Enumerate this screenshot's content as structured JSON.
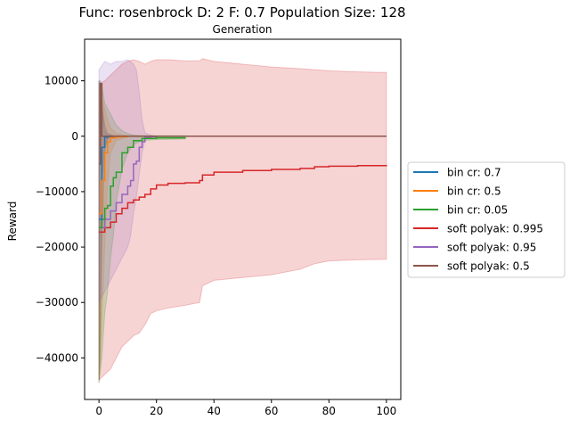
{
  "chart_data": {
    "type": "line",
    "title": "Func: rosenbrock D: 2 F: 0.7 Population Size: 128",
    "xlabel_top": "Generation",
    "ylabel": "Reward",
    "xlim": [
      -5,
      105
    ],
    "ylim": [
      -47500,
      17500
    ],
    "xticks": [
      0,
      20,
      40,
      60,
      80,
      100
    ],
    "yticks": [
      10000,
      0,
      -10000,
      -20000,
      -30000,
      -40000
    ],
    "ytick_labels": [
      "10000",
      "0",
      "−10000",
      "−20000",
      "−30000",
      "−40000"
    ],
    "grid": false,
    "legend_position": "center-right-outside",
    "series": [
      {
        "name": "bin cr: 0.7",
        "color": "#1f77b4",
        "x": [
          0,
          1,
          2,
          3,
          5,
          10,
          30,
          60,
          100
        ],
        "mean": [
          -15000,
          -2000,
          -200,
          -50,
          0,
          0,
          0,
          0,
          0
        ],
        "lower": [
          -44000,
          -20000,
          -3000,
          -500,
          -100,
          0,
          0,
          0,
          0
        ],
        "upper": [
          10000,
          5000,
          1000,
          300,
          100,
          0,
          0,
          0,
          0
        ]
      },
      {
        "name": "bin cr: 0.5",
        "color": "#ff7f0e",
        "x": [
          0,
          1,
          2,
          3,
          4,
          6,
          10,
          30,
          60,
          100
        ],
        "mean": [
          -14000,
          -8000,
          -3000,
          -1000,
          -300,
          -100,
          0,
          0,
          0,
          0
        ],
        "lower": [
          -44000,
          -34000,
          -20000,
          -9000,
          -3000,
          -800,
          -100,
          0,
          0,
          0
        ],
        "upper": [
          9000,
          7000,
          5000,
          3000,
          1500,
          500,
          100,
          0,
          0,
          0
        ]
      },
      {
        "name": "bin cr: 0.05",
        "color": "#2ca02c",
        "x": [
          0,
          1,
          2,
          3,
          4,
          5,
          6,
          8,
          10,
          12,
          15,
          20,
          30
        ],
        "mean": [
          -16500,
          -15000,
          -13000,
          -12500,
          -9000,
          -7500,
          -6500,
          -3000,
          -2000,
          -800,
          -400,
          -300,
          -200
        ],
        "lower": [
          -44500,
          -40000,
          -32000,
          -28000,
          -22000,
          -18000,
          -12000,
          -6000,
          -3000,
          -1500,
          -800,
          -600,
          -500
        ],
        "upper": [
          10000,
          9000,
          6000,
          5000,
          4000,
          3000,
          2000,
          1000,
          500,
          200,
          100,
          100,
          100
        ]
      },
      {
        "name": "soft polyak: 0.995",
        "color": "#d62728",
        "x": [
          0,
          2,
          4,
          6,
          8,
          10,
          12,
          14,
          16,
          18,
          20,
          24,
          30,
          35,
          36,
          40,
          50,
          60,
          70,
          75,
          80,
          90,
          100
        ],
        "mean": [
          -17300,
          -16500,
          -15500,
          -14000,
          -13000,
          -12000,
          -11500,
          -11000,
          -10500,
          -9500,
          -8800,
          -8500,
          -8400,
          -8000,
          -7000,
          -6500,
          -6200,
          -6000,
          -5800,
          -5500,
          -5400,
          -5300,
          -5200
        ],
        "lower": [
          -44000,
          -43000,
          -42000,
          -40000,
          -38000,
          -37000,
          -36000,
          -35500,
          -34000,
          -32000,
          -31500,
          -31000,
          -30500,
          -30000,
          -27000,
          -26000,
          -25500,
          -25000,
          -24000,
          -23000,
          -22500,
          -22300,
          -22200
        ],
        "upper": [
          9500,
          10000,
          11000,
          12000,
          13000,
          13500,
          13800,
          13500,
          13000,
          13500,
          13800,
          13800,
          13600,
          13600,
          14000,
          13500,
          13000,
          12500,
          12200,
          12000,
          11800,
          11600,
          11500
        ]
      },
      {
        "name": "soft polyak: 0.95",
        "color": "#9467bd",
        "x": [
          0,
          2,
          4,
          6,
          8,
          10,
          11,
          12,
          13,
          14,
          15,
          16,
          18,
          20,
          30,
          60,
          100
        ],
        "mean": [
          -16500,
          -15000,
          -13500,
          -12000,
          -10500,
          -9000,
          -8000,
          -5000,
          -4500,
          -2000,
          -1000,
          -200,
          -100,
          0,
          0,
          0,
          0
        ],
        "lower": [
          -30000,
          -28000,
          -26000,
          -24000,
          -22000,
          -20000,
          -18000,
          -14000,
          -11000,
          -7000,
          -3000,
          -600,
          -200,
          0,
          0,
          0,
          0
        ],
        "upper": [
          12000,
          13500,
          13000,
          13500,
          13500,
          13800,
          13500,
          13000,
          12000,
          8000,
          3000,
          600,
          200,
          0,
          0,
          0,
          0
        ]
      },
      {
        "name": "soft polyak: 0.5",
        "color": "#8c564b",
        "x": [
          0,
          0.5,
          1,
          2,
          3,
          5,
          10,
          30,
          60,
          100
        ],
        "mean": [
          -5000,
          9500,
          0,
          0,
          0,
          0,
          0,
          0,
          0,
          0
        ],
        "lower": [
          -44500,
          -40000,
          -8000,
          -2000,
          -500,
          -100,
          0,
          0,
          0,
          0
        ],
        "upper": [
          10000,
          10000,
          6000,
          2000,
          500,
          100,
          0,
          0,
          0,
          0
        ]
      }
    ]
  }
}
